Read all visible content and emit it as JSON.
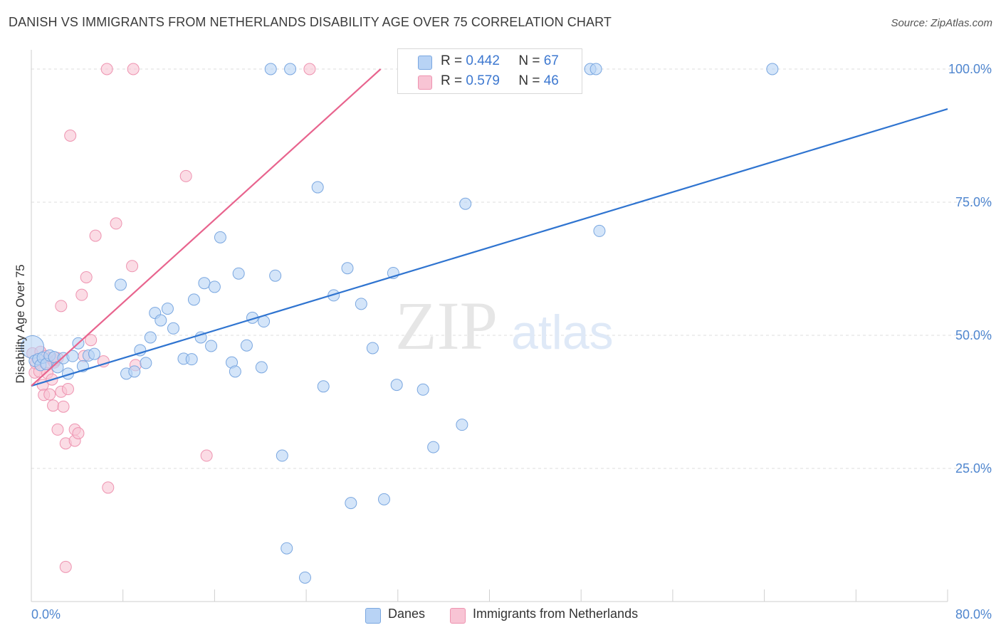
{
  "header": {
    "title": "DANISH VS IMMIGRANTS FROM NETHERLANDS DISABILITY AGE OVER 75 CORRELATION CHART",
    "source": "Source: ZipAtlas.com"
  },
  "legend_top": {
    "rows": [
      {
        "r_label": "R =",
        "r_value": "0.442",
        "n_label": "N =",
        "n_value": "67"
      },
      {
        "r_label": "R =",
        "r_value": "0.579",
        "n_label": "N =",
        "n_value": "46"
      }
    ]
  },
  "legend_bottom": {
    "danes": "Danes",
    "netherlands": "Immigrants from Netherlands"
  },
  "watermark": {
    "zip": "ZIP",
    "atlas": "atlas"
  },
  "colors": {
    "danes_fill": "#b8d3f5",
    "danes_stroke": "#7aa7e0",
    "danes_line": "#2f74d0",
    "nl_fill": "#f8c4d4",
    "nl_stroke": "#ee93b0",
    "nl_line": "#e8648e",
    "grid": "#dcdcdc",
    "tick_label": "#4f86cf"
  },
  "chart_data": {
    "type": "scatter",
    "title": "DANISH VS IMMIGRANTS FROM NETHERLANDS DISABILITY AGE OVER 75 CORRELATION CHART",
    "xlabel": "",
    "ylabel": "Disability Age Over 75",
    "xlim": [
      0,
      80
    ],
    "ylim": [
      0,
      102
    ],
    "x_tick_labels": [
      "0.0%",
      "80.0%"
    ],
    "y_ticks": [
      25,
      50,
      75,
      100
    ],
    "y_tick_labels": [
      "25.0%",
      "50.0%",
      "75.0%",
      "100.0%"
    ],
    "grid": true,
    "legend_placement": "top-center",
    "series": [
      {
        "name": "Danes",
        "R": 0.442,
        "N": 67,
        "trend": {
          "x": [
            0,
            80
          ],
          "y": [
            40.5,
            92.5
          ]
        },
        "points": [
          [
            0.1,
            47.8
          ],
          [
            0.3,
            45.2
          ],
          [
            0.6,
            45.5
          ],
          [
            0.8,
            44.4
          ],
          [
            1.0,
            45.8
          ],
          [
            1.3,
            44.6
          ],
          [
            1.6,
            46.2
          ],
          [
            2.0,
            45.9
          ],
          [
            2.3,
            44.0
          ],
          [
            2.8,
            45.7
          ],
          [
            3.2,
            42.8
          ],
          [
            3.6,
            46.1
          ],
          [
            4.1,
            48.5
          ],
          [
            4.5,
            44.2
          ],
          [
            5.0,
            46.2
          ],
          [
            5.5,
            46.5
          ],
          [
            7.8,
            59.5
          ],
          [
            8.3,
            42.8
          ],
          [
            9.0,
            43.2
          ],
          [
            9.5,
            47.2
          ],
          [
            10.0,
            44.8
          ],
          [
            10.4,
            49.6
          ],
          [
            10.8,
            54.2
          ],
          [
            11.3,
            52.8
          ],
          [
            11.9,
            55.0
          ],
          [
            12.4,
            51.3
          ],
          [
            13.3,
            45.6
          ],
          [
            14.0,
            45.5
          ],
          [
            14.2,
            56.7
          ],
          [
            14.8,
            49.6
          ],
          [
            15.1,
            59.8
          ],
          [
            15.7,
            48.0
          ],
          [
            16.0,
            59.1
          ],
          [
            16.5,
            68.4
          ],
          [
            17.5,
            44.9
          ],
          [
            17.8,
            43.2
          ],
          [
            18.1,
            61.6
          ],
          [
            18.8,
            48.1
          ],
          [
            19.3,
            53.3
          ],
          [
            20.1,
            44.0
          ],
          [
            20.3,
            52.6
          ],
          [
            20.9,
            100.0
          ],
          [
            21.3,
            61.2
          ],
          [
            21.9,
            27.4
          ],
          [
            22.3,
            10.0
          ],
          [
            22.6,
            100.0
          ],
          [
            23.9,
            4.5
          ],
          [
            25.0,
            77.8
          ],
          [
            25.5,
            40.4
          ],
          [
            26.4,
            57.5
          ],
          [
            27.6,
            62.6
          ],
          [
            27.9,
            18.5
          ],
          [
            28.8,
            55.9
          ],
          [
            29.8,
            47.6
          ],
          [
            30.8,
            19.2
          ],
          [
            31.6,
            61.7
          ],
          [
            31.9,
            40.7
          ],
          [
            34.2,
            39.8
          ],
          [
            35.1,
            29.0
          ],
          [
            37.6,
            33.2
          ],
          [
            37.9,
            74.7
          ],
          [
            39.4,
            100.0
          ],
          [
            47.2,
            100.0
          ],
          [
            48.8,
            100.0
          ],
          [
            49.3,
            100.0
          ],
          [
            49.6,
            69.6
          ],
          [
            64.7,
            100.0
          ]
        ]
      },
      {
        "name": "Immigrants from Netherlands",
        "R": 0.579,
        "N": 46,
        "trend": {
          "x": [
            0,
            30.5
          ],
          "y": [
            40.5,
            100.0
          ]
        },
        "points": [
          [
            0.1,
            46.6
          ],
          [
            0.3,
            43.0
          ],
          [
            0.4,
            44.7
          ],
          [
            0.6,
            45.5
          ],
          [
            0.7,
            43.2
          ],
          [
            0.8,
            46.9
          ],
          [
            1.0,
            40.7
          ],
          [
            1.1,
            38.8
          ],
          [
            1.2,
            46.1
          ],
          [
            1.3,
            44.7
          ],
          [
            1.4,
            42.9
          ],
          [
            1.6,
            38.9
          ],
          [
            1.7,
            45.7
          ],
          [
            1.8,
            41.7
          ],
          [
            1.9,
            36.8
          ],
          [
            2.0,
            44.9
          ],
          [
            2.1,
            45.3
          ],
          [
            2.3,
            45.7
          ],
          [
            2.3,
            32.3
          ],
          [
            2.6,
            55.5
          ],
          [
            2.6,
            39.4
          ],
          [
            2.8,
            36.6
          ],
          [
            3.0,
            29.7
          ],
          [
            3.0,
            6.5
          ],
          [
            3.2,
            39.9
          ],
          [
            3.4,
            87.5
          ],
          [
            3.8,
            32.3
          ],
          [
            3.8,
            30.2
          ],
          [
            4.1,
            31.6
          ],
          [
            4.4,
            57.6
          ],
          [
            4.6,
            46.1
          ],
          [
            4.8,
            60.9
          ],
          [
            5.2,
            49.1
          ],
          [
            5.6,
            68.7
          ],
          [
            6.3,
            45.1
          ],
          [
            6.6,
            100.0
          ],
          [
            6.7,
            21.4
          ],
          [
            7.4,
            71.0
          ],
          [
            8.8,
            63.0
          ],
          [
            8.9,
            100.0
          ],
          [
            9.1,
            44.4
          ],
          [
            13.5,
            79.9
          ],
          [
            15.3,
            27.4
          ],
          [
            24.3,
            100.0
          ],
          [
            32.7,
            100.0
          ],
          [
            33.5,
            100.0
          ]
        ]
      }
    ]
  }
}
